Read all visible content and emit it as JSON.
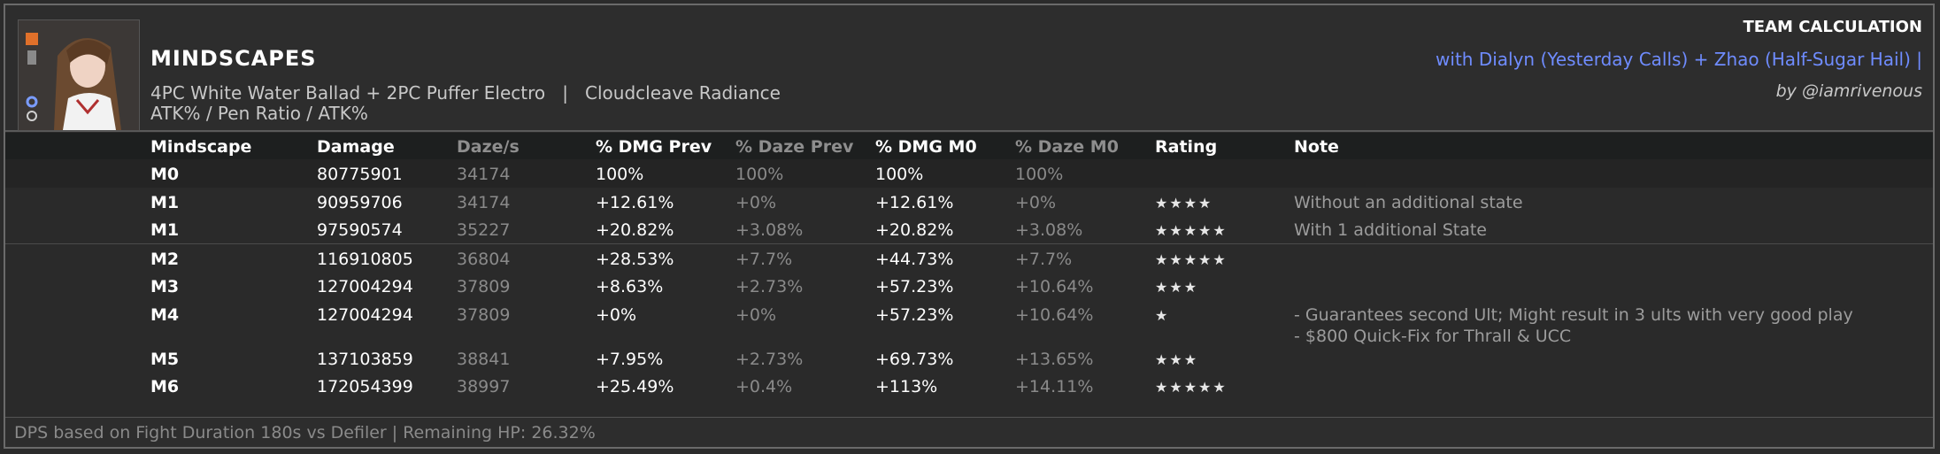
{
  "header": {
    "title": "MINDSCAPES",
    "build_line": "4PC White Water Ballad + 2PC Puffer Electro   |   Cloudcleave Radiance",
    "stats_line": "ATK% / Pen Ratio / ATK%",
    "team_title": "TEAM CALCULATION",
    "team_with": "with Dialyn (Yesterday Calls) + Zhao (Half-Sugar Hail) |",
    "author": "by @iamrivenous"
  },
  "table": {
    "columns": [
      "Mindscape",
      "Damage",
      "Daze/s",
      "% DMG Prev",
      "% Daze Prev",
      "% DMG M0",
      "% Daze M0",
      "Rating",
      "Note"
    ],
    "rows": [
      {
        "mindscape": "M0",
        "damage": "80775901",
        "daze": "34174",
        "dmg_prev": "100%",
        "daze_prev": "100%",
        "dmg_m0": "100%",
        "daze_m0": "100%",
        "rating": "",
        "note": ""
      },
      {
        "mindscape": "M1",
        "damage": "90959706",
        "daze": "34174",
        "dmg_prev": "+12.61%",
        "daze_prev": "+0%",
        "dmg_m0": "+12.61%",
        "daze_m0": "+0%",
        "rating": "★★★★",
        "note": "Without an additional state"
      },
      {
        "mindscape": "M1",
        "damage": "97590574",
        "daze": "35227",
        "dmg_prev": "+20.82%",
        "daze_prev": "+3.08%",
        "dmg_m0": "+20.82%",
        "daze_m0": "+3.08%",
        "rating": "★★★★★",
        "note": "With 1 additional State"
      },
      {
        "mindscape": "M2",
        "damage": "116910805",
        "daze": "36804",
        "dmg_prev": "+28.53%",
        "daze_prev": "+7.7%",
        "dmg_m0": "+44.73%",
        "daze_m0": "+7.7%",
        "rating": "★★★★★",
        "note": ""
      },
      {
        "mindscape": "M3",
        "damage": "127004294",
        "daze": "37809",
        "dmg_prev": "+8.63%",
        "daze_prev": "+2.73%",
        "dmg_m0": "+57.23%",
        "daze_m0": "+10.64%",
        "rating": "★★★",
        "note": ""
      },
      {
        "mindscape": "M4",
        "damage": "127004294",
        "daze": "37809",
        "dmg_prev": "+0%",
        "daze_prev": "+0%",
        "dmg_m0": "+57.23%",
        "daze_m0": "+10.64%",
        "rating": "★",
        "note": "- Guarantees second Ult; Might result in 3 ults with very good play",
        "note2": "- $800 Quick-Fix for Thrall & UCC"
      },
      {
        "mindscape": "M5",
        "damage": "137103859",
        "daze": "38841",
        "dmg_prev": "+7.95%",
        "daze_prev": "+2.73%",
        "dmg_m0": "+69.73%",
        "daze_m0": "+13.65%",
        "rating": "★★★",
        "note": ""
      },
      {
        "mindscape": "M6",
        "damage": "172054399",
        "daze": "38997",
        "dmg_prev": "+25.49%",
        "daze_prev": "+0.4%",
        "dmg_m0": "+113%",
        "daze_m0": "+14.11%",
        "rating": "★★★★★",
        "note": ""
      }
    ]
  },
  "footer": {
    "text": "DPS based on Fight Duration 180s vs Defiler | Remaining HP: 26.32%"
  },
  "colors": {
    "accent_blue": "#6f8cff",
    "background": "#2a2a2a",
    "header_row": "#1d1f1f"
  },
  "icons": [
    "character-portrait",
    "disk-icon",
    "battery-icon",
    "gear-icon",
    "engine-icon"
  ]
}
